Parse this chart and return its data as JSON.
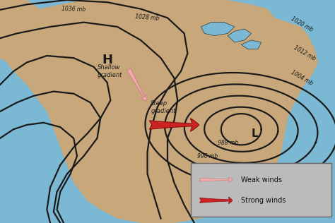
{
  "background_color": "#7BB8D4",
  "land_color": "#C8A87A",
  "isobar_color": "#1a1a1a",
  "isobar_linewidth": 1.6,
  "figsize": [
    4.74,
    3.16
  ],
  "dpi": 100,
  "high_label": "H",
  "low_label": "L",
  "weak_arrow_color": "#F4AAAA",
  "weak_arrow_edge": "#C88888",
  "strong_arrow_color": "#CC2222",
  "strong_arrow_edge": "#881111",
  "legend_labels": [
    "Weak winds",
    "Strong winds"
  ],
  "legend_bg": "#BBBBBB",
  "legend_edge": "#666666"
}
